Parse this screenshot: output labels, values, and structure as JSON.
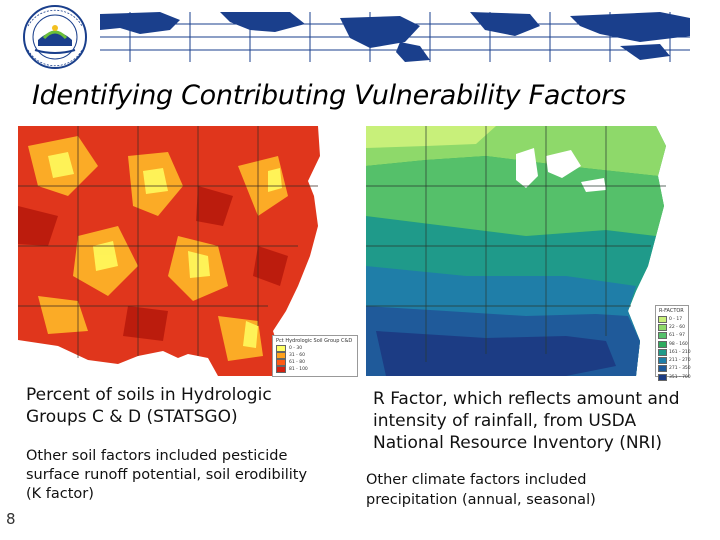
{
  "header": {
    "agency_seal_text": "UNITED STATES ENVIRONMENTAL PROTECTION AGENCY"
  },
  "slide": {
    "title": "Identifying Contributing Vulnerability Factors",
    "page_number": "8"
  },
  "left_panel": {
    "legend_title": "Pct Hydrologic Soil Group C&D",
    "legend_items": [
      "0 - 30",
      "31 - 60",
      "61 - 80",
      "81 - 100"
    ],
    "legend_colors": [
      "#ffff66",
      "#ffa21e",
      "#ff5a14",
      "#d42010"
    ],
    "caption_main": "Percent of soils in Hydrologic Groups C & D (STATSGO)",
    "caption_sub": "Other soil factors included pesticide surface runoff potential, soil erodibility (K factor)"
  },
  "right_panel": {
    "legend_title": "R-FACTOR",
    "legend_items": [
      "0 - 17",
      "22 - 60",
      "61 - 97",
      "98 - 160",
      "161 - 210",
      "211 - 270",
      "271 - 350",
      "351 - 700"
    ],
    "legend_colors": [
      "#c8f07a",
      "#8ed96a",
      "#55c06a",
      "#2eab5e",
      "#1f9a8a",
      "#1f7ea8",
      "#1f5a9a",
      "#1c3c84"
    ],
    "caption_main": "R Factor, which reflects amount and intensity of rainfall, from USDA National Resource Inventory (NRI)",
    "caption_sub": "Other climate factors included precipitation (annual, seasonal)"
  }
}
